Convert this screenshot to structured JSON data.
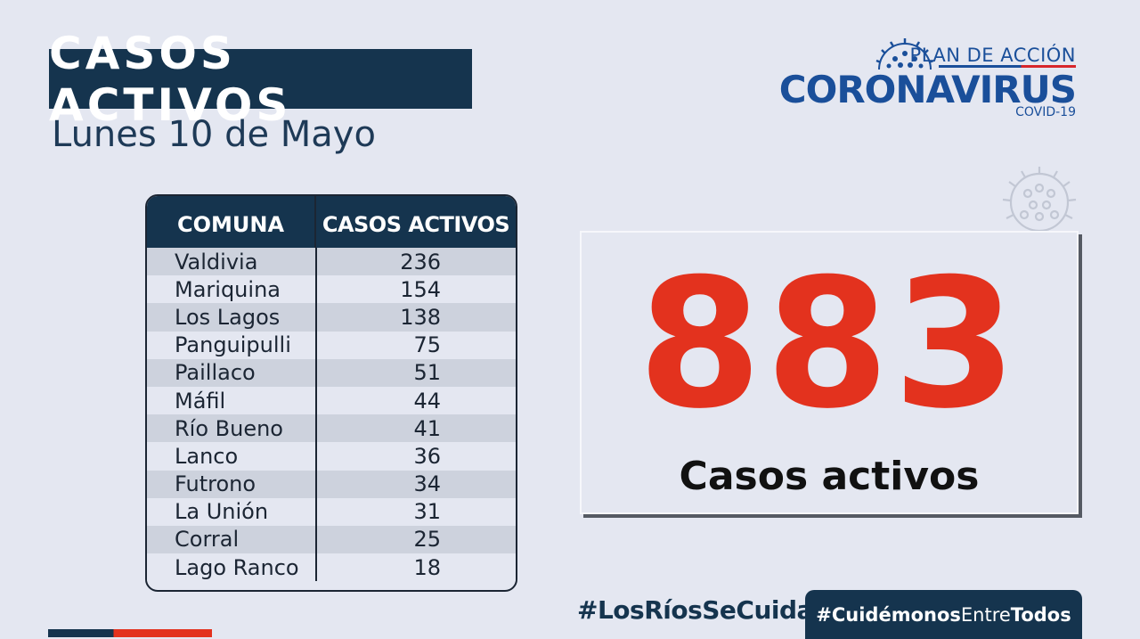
{
  "header": {
    "title": "CASOS ACTIVOS",
    "date": "Lunes 10 de Mayo"
  },
  "logo": {
    "line1": "PLAN DE ACCIÓN",
    "line2": "CORONAVIRUS",
    "line3": "COVID-19",
    "icon": "virus-icon"
  },
  "table": {
    "headers": [
      "COMUNA",
      "CASOS ACTIVOS"
    ],
    "rows": [
      {
        "comuna": "Valdivia",
        "casos": "236"
      },
      {
        "comuna": "Mariquina",
        "casos": "154"
      },
      {
        "comuna": "Los Lagos",
        "casos": "138"
      },
      {
        "comuna": "Panguipulli",
        "casos": "75"
      },
      {
        "comuna": "Paillaco",
        "casos": "51"
      },
      {
        "comuna": "Máfil",
        "casos": "44"
      },
      {
        "comuna": "Río Bueno",
        "casos": "41"
      },
      {
        "comuna": "Lanco",
        "casos": "36"
      },
      {
        "comuna": "Futrono",
        "casos": "34"
      },
      {
        "comuna": "La Unión",
        "casos": "31"
      },
      {
        "comuna": "Corral",
        "casos": "25"
      },
      {
        "comuna": "Lago Ranco",
        "casos": "18"
      }
    ]
  },
  "total": {
    "value": "883",
    "label": "Casos activos"
  },
  "footer": {
    "hashtag1": "#LosRíosSeCuida",
    "hashtag2_part1": "#Cuidémonos",
    "hashtag2_part2": "Entre",
    "hashtag2_part3": "Todos"
  },
  "colors": {
    "navy": "#15344e",
    "red": "#e3321e",
    "background": "#e4e7f1"
  }
}
